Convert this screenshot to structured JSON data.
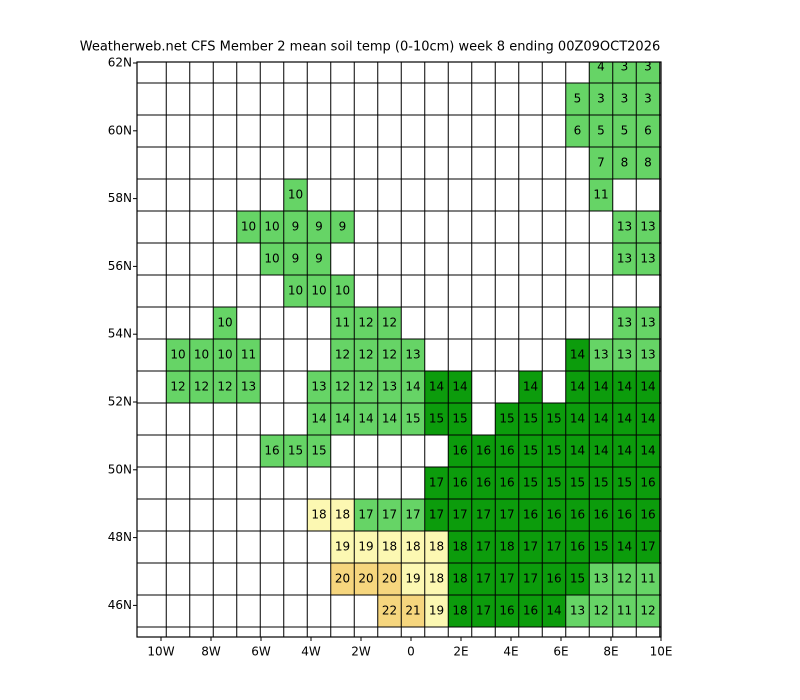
{
  "title": "Weatherweb.net CFS Member 2 mean soil temp (0-10cm) week 8 ending 00Z09OCT2026",
  "lat_labels": [
    "62N",
    "60N",
    "58N",
    "56N",
    "54N",
    "52N",
    "50N",
    "48N",
    "46N"
  ],
  "lon_labels": [
    "10W",
    "8W",
    "6W",
    "4W",
    "2W",
    "0",
    "2E",
    "4E",
    "6E",
    "8E",
    "10E"
  ],
  "cells": [
    [
      null,
      null,
      null,
      null,
      null,
      null,
      null,
      null,
      null,
      null,
      null,
      null,
      null,
      null,
      null,
      null,
      null,
      null,
      4,
      3,
      3
    ],
    [
      null,
      null,
      null,
      null,
      null,
      null,
      null,
      null,
      null,
      null,
      null,
      null,
      null,
      null,
      null,
      null,
      null,
      5,
      3,
      3,
      3
    ],
    [
      null,
      null,
      null,
      null,
      null,
      null,
      null,
      null,
      null,
      null,
      null,
      null,
      null,
      null,
      null,
      null,
      null,
      6,
      5,
      5,
      6
    ],
    [
      null,
      null,
      null,
      null,
      null,
      null,
      null,
      null,
      null,
      null,
      null,
      null,
      null,
      null,
      null,
      null,
      null,
      null,
      7,
      8,
      8
    ],
    [
      null,
      null,
      null,
      null,
      null,
      10,
      null,
      null,
      null,
      null,
      null,
      null,
      null,
      null,
      null,
      null,
      null,
      null,
      11,
      null,
      null
    ],
    [
      null,
      null,
      null,
      10,
      10,
      9,
      9,
      9,
      null,
      null,
      null,
      null,
      null,
      null,
      null,
      null,
      null,
      null,
      null,
      13,
      13
    ],
    [
      null,
      null,
      null,
      null,
      10,
      9,
      9,
      null,
      null,
      null,
      null,
      null,
      null,
      null,
      null,
      null,
      null,
      null,
      null,
      13,
      13
    ],
    [
      null,
      null,
      null,
      null,
      null,
      10,
      10,
      10,
      null,
      null,
      null,
      null,
      null,
      null,
      null,
      null,
      null,
      null,
      null,
      null,
      null
    ],
    [
      null,
      null,
      10,
      null,
      null,
      null,
      null,
      11,
      12,
      12,
      null,
      null,
      null,
      null,
      null,
      null,
      null,
      null,
      null,
      13,
      13
    ],
    [
      10,
      10,
      10,
      11,
      null,
      null,
      null,
      12,
      12,
      12,
      13,
      null,
      null,
      null,
      null,
      null,
      null,
      14,
      13,
      13,
      13
    ],
    [
      12,
      12,
      12,
      13,
      null,
      null,
      13,
      12,
      12,
      13,
      14,
      14,
      14,
      null,
      null,
      14,
      null,
      14,
      14,
      14,
      14
    ],
    [
      null,
      null,
      null,
      null,
      null,
      null,
      14,
      14,
      14,
      14,
      15,
      15,
      15,
      null,
      15,
      15,
      15,
      14,
      14,
      14,
      14
    ],
    [
      null,
      null,
      null,
      null,
      16,
      15,
      15,
      null,
      null,
      null,
      null,
      null,
      16,
      16,
      16,
      15,
      15,
      14,
      14,
      14,
      14
    ],
    [
      null,
      null,
      null,
      null,
      null,
      null,
      null,
      null,
      null,
      null,
      null,
      17,
      16,
      16,
      16,
      15,
      15,
      15,
      15,
      15,
      16
    ],
    [
      null,
      null,
      null,
      null,
      null,
      null,
      18,
      18,
      17,
      17,
      17,
      17,
      17,
      17,
      17,
      16,
      16,
      16,
      16,
      16,
      16
    ],
    [
      null,
      null,
      null,
      null,
      null,
      null,
      null,
      19,
      19,
      18,
      18,
      18,
      18,
      17,
      18,
      17,
      17,
      16,
      15,
      14,
      17
    ],
    [
      null,
      null,
      null,
      null,
      null,
      null,
      null,
      20,
      20,
      20,
      19,
      18,
      18,
      17,
      17,
      17,
      16,
      15,
      13,
      12,
      11
    ],
    [
      null,
      null,
      null,
      null,
      null,
      null,
      null,
      null,
      null,
      22,
      21,
      19,
      18,
      17,
      16,
      16,
      14,
      13,
      12,
      11,
      12
    ]
  ]
}
